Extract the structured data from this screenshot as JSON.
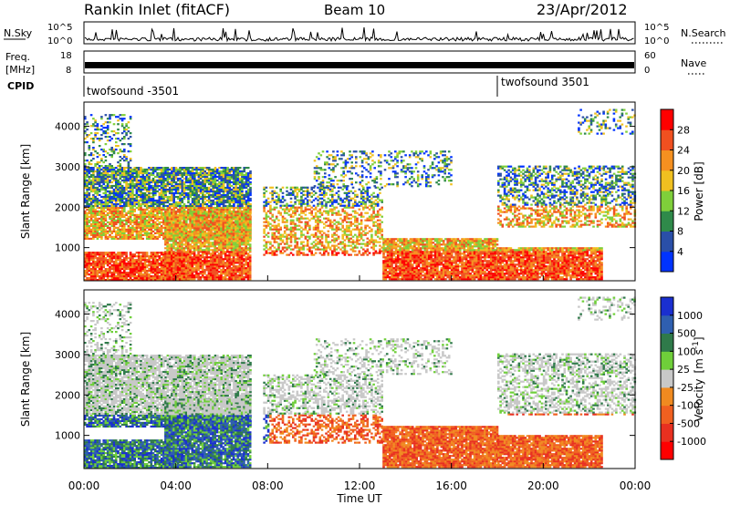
{
  "header": {
    "title": "Rankin Inlet (fitACF)",
    "beam": "Beam 10",
    "date": "23/Apr/2012"
  },
  "sky_panel": {
    "label": "N.Sky",
    "left_ticks": [
      "10^5",
      "10^0"
    ],
    "right_ticks": [
      "10^5",
      "10^0"
    ],
    "right_label": "N.Search"
  },
  "freq_panel": {
    "label_line1": "Freq.",
    "label_line2": "[MHz]",
    "left_ticks": [
      "18",
      "8"
    ],
    "right_ticks": [
      "60",
      "0"
    ],
    "right_label": "Nave"
  },
  "cpid_panel": {
    "label": "CPID",
    "program_1": "twofsound -3501",
    "program_2": "twofsound 3501",
    "switch_time": "18:00"
  },
  "colors": {
    "power": [
      "#0033ff",
      "#2a4fa8",
      "#2f8a4a",
      "#7fcf3a",
      "#f0c020",
      "#f59020",
      "#f05020",
      "#ff0000"
    ],
    "velocity": [
      "#1a2fd0",
      "#2f5fb0",
      "#2f7a4a",
      "#6fcf3a",
      "#c8c8c8",
      "#f08a20",
      "#f06020",
      "#e83020",
      "#ff0000"
    ]
  },
  "chart_data": [
    {
      "type": "heatmap",
      "name": "power",
      "ylabel": "Slant Range [km]",
      "xlabel": "",
      "xlim": [
        "00:00",
        "24:00"
      ],
      "ylim": [
        180,
        4600
      ],
      "yticks": [
        1000,
        2000,
        3000,
        4000
      ],
      "colorbar": {
        "label": "Power [dB]",
        "ticks": [
          "4",
          "8",
          "12",
          "16",
          "20",
          "24",
          "28"
        ],
        "range": [
          0,
          32
        ]
      }
    },
    {
      "type": "heatmap",
      "name": "velocity",
      "ylabel": "Slant Range [km]",
      "xlabel": "Time UT",
      "xlim": [
        "00:00",
        "24:00"
      ],
      "ylim": [
        180,
        4600
      ],
      "yticks": [
        1000,
        2000,
        3000,
        4000
      ],
      "xticks": [
        "00:00",
        "04:00",
        "08:00",
        "12:00",
        "16:00",
        "20:00",
        "00:00"
      ],
      "colorbar": {
        "label_main": "Velocity",
        "label_unit": "[m s",
        "label_exp": "-1",
        "label_close": "]",
        "ticks": [
          "1000",
          "500",
          "100",
          "25",
          "-25",
          "-100",
          "-500",
          "-1000"
        ]
      }
    }
  ]
}
